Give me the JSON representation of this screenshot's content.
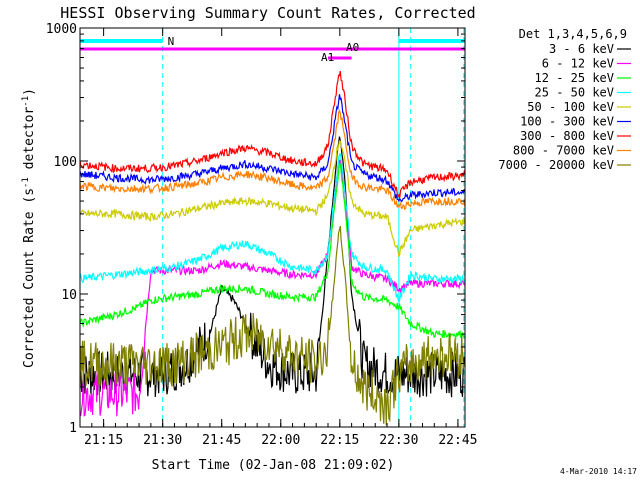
{
  "chart_data": {
    "type": "line",
    "title": "HESSI Observing Summary Count Rates, Corrected",
    "xlabel": "Start Time (02-Jan-08 21:09:02)",
    "ylabel_main": "Corrected Count Rate (s",
    "ylabel_sup1": "-1",
    "ylabel_mid": " detector",
    "ylabel_sup2": "-1",
    "ylabel_end": ")",
    "yscale": "log",
    "ylim": [
      1,
      1000
    ],
    "xlim_minutes": [
      21.15,
      22.78
    ],
    "x_ticks": [
      {
        "label": "21:15",
        "value": 21.25
      },
      {
        "label": "21:30",
        "value": 21.5
      },
      {
        "label": "21:45",
        "value": 21.75
      },
      {
        "label": "22:00",
        "value": 22.0
      },
      {
        "label": "22:15",
        "value": 22.25
      },
      {
        "label": "22:30",
        "value": 22.5
      },
      {
        "label": "22:45",
        "value": 22.75
      }
    ],
    "y_ticks": [
      {
        "label": "1",
        "value": 1
      },
      {
        "label": "10",
        "value": 10
      },
      {
        "label": "100",
        "value": 100
      },
      {
        "label": "1000",
        "value": 1000
      }
    ],
    "legend_title": "Det 1,3,4,5,6,9",
    "legend_placement": "right",
    "series": [
      {
        "name": "3 - 6 keV",
        "color": "#000000",
        "x": [
          21.15,
          21.3,
          21.5,
          21.6,
          21.7,
          21.75,
          21.8,
          21.85,
          21.9,
          21.95,
          22.05,
          22.15,
          22.2,
          22.23,
          22.25,
          22.27,
          22.3,
          22.35,
          22.45,
          22.55,
          22.65,
          22.78
        ],
        "y": [
          2.5,
          2.5,
          2.5,
          3,
          5,
          11,
          9,
          6,
          4,
          3,
          2.5,
          2.5,
          20,
          80,
          160,
          80,
          10,
          3,
          2.5,
          2.5,
          2.5,
          2.5
        ]
      },
      {
        "name": "6 - 12 keV",
        "color": "#ff00ff",
        "x": [
          21.15,
          21.3,
          21.4,
          21.45,
          21.55,
          21.65,
          21.75,
          21.85,
          21.95,
          22.05,
          22.15,
          22.2,
          22.23,
          22.25,
          22.27,
          22.3,
          22.35,
          22.45,
          22.5,
          22.55,
          22.65,
          22.78
        ],
        "y": [
          1.8,
          1.8,
          1.8,
          15,
          15,
          15,
          17,
          16,
          15,
          14,
          14,
          20,
          60,
          110,
          60,
          16,
          14,
          13,
          11,
          12,
          12,
          12
        ]
      },
      {
        "name": "12 - 25 keV",
        "color": "#00ff00",
        "x": [
          21.15,
          21.3,
          21.4,
          21.45,
          21.55,
          21.65,
          21.75,
          21.85,
          21.95,
          22.05,
          22.15,
          22.2,
          22.23,
          22.25,
          22.27,
          22.3,
          22.35,
          22.45,
          22.5,
          22.55,
          22.65,
          22.78
        ],
        "y": [
          6,
          7,
          8,
          9,
          9.5,
          10,
          11,
          11,
          10,
          9.5,
          9.5,
          15,
          50,
          100,
          50,
          12,
          9.5,
          9,
          8,
          6,
          5,
          5
        ]
      },
      {
        "name": "25 - 50 keV",
        "color": "#00ffff",
        "x": [
          21.15,
          21.3,
          21.45,
          21.55,
          21.65,
          21.75,
          21.85,
          21.95,
          22.05,
          22.15,
          22.2,
          22.23,
          22.25,
          22.27,
          22.3,
          22.35,
          22.45,
          22.5,
          22.55,
          22.65,
          22.78
        ],
        "y": [
          13,
          14,
          15,
          16,
          18,
          22,
          24,
          20,
          16,
          15,
          20,
          60,
          120,
          60,
          20,
          16,
          15,
          9,
          14,
          13,
          13
        ]
      },
      {
        "name": "50 - 100 keV",
        "color": "#cccc00",
        "x": [
          21.15,
          21.3,
          21.45,
          21.55,
          21.65,
          21.75,
          21.85,
          21.95,
          22.05,
          22.15,
          22.2,
          22.23,
          22.25,
          22.27,
          22.3,
          22.35,
          22.45,
          22.5,
          22.55,
          22.65,
          22.78
        ],
        "y": [
          40,
          40,
          38,
          40,
          44,
          48,
          50,
          48,
          44,
          42,
          55,
          100,
          150,
          100,
          50,
          40,
          38,
          20,
          30,
          33,
          35
        ]
      },
      {
        "name": "100 - 300 keV",
        "color": "#0000ff",
        "x": [
          21.15,
          21.3,
          21.45,
          21.55,
          21.65,
          21.75,
          21.85,
          21.95,
          22.05,
          22.15,
          22.2,
          22.23,
          22.25,
          22.27,
          22.3,
          22.35,
          22.45,
          22.5,
          22.55,
          22.65,
          22.78
        ],
        "y": [
          80,
          75,
          72,
          75,
          80,
          88,
          95,
          88,
          80,
          75,
          95,
          200,
          320,
          200,
          95,
          80,
          72,
          50,
          55,
          58,
          58
        ]
      },
      {
        "name": "300 - 800 keV",
        "color": "#ff0000",
        "x": [
          21.15,
          21.3,
          21.45,
          21.55,
          21.65,
          21.75,
          21.85,
          21.95,
          22.05,
          22.15,
          22.2,
          22.23,
          22.25,
          22.27,
          22.3,
          22.35,
          22.45,
          22.5,
          22.55,
          22.65,
          22.78
        ],
        "y": [
          95,
          88,
          88,
          92,
          100,
          115,
          125,
          115,
          100,
          95,
          130,
          300,
          480,
          300,
          130,
          95,
          85,
          55,
          70,
          75,
          78
        ]
      },
      {
        "name": "800 - 7000 keV",
        "color": "#ff8000",
        "x": [
          21.15,
          21.3,
          21.45,
          21.55,
          21.65,
          21.75,
          21.85,
          21.95,
          22.05,
          22.15,
          22.2,
          22.23,
          22.25,
          22.27,
          22.3,
          22.35,
          22.45,
          22.5,
          22.55,
          22.65,
          22.78
        ],
        "y": [
          65,
          62,
          62,
          64,
          68,
          75,
          80,
          74,
          66,
          62,
          75,
          150,
          250,
          150,
          75,
          64,
          60,
          45,
          48,
          50,
          50
        ]
      },
      {
        "name": "7000 - 20000 keV",
        "color": "#808000",
        "x": [
          21.15,
          21.3,
          21.45,
          21.55,
          21.65,
          21.75,
          21.85,
          21.95,
          22.05,
          22.15,
          22.2,
          22.23,
          22.25,
          22.27,
          22.3,
          22.35,
          22.45,
          22.5,
          22.55,
          22.65,
          22.78
        ],
        "y": [
          3,
          3,
          3,
          3,
          3.5,
          4,
          5,
          4.5,
          3.5,
          3,
          4,
          15,
          33,
          15,
          3,
          2,
          1.5,
          2.5,
          3,
          3.5,
          3.5
        ]
      }
    ],
    "annotations": {
      "night": {
        "label": "N",
        "color": "#00ffff",
        "segments": [
          [
            21.15,
            21.5
          ],
          [
            22.5,
            22.78
          ]
        ]
      },
      "attenuator": {
        "label": "A0",
        "color": "#ff00ff",
        "segments": [
          [
            21.15,
            22.78
          ]
        ]
      },
      "a1": {
        "label": "A1",
        "color": "#ff00ff",
        "segments": [
          [
            22.2,
            22.3
          ]
        ]
      },
      "vlines": [
        {
          "x": 21.5,
          "color": "#00ffff",
          "style": "dashed"
        },
        {
          "x": 22.5,
          "color": "#00ffff",
          "style": "solid"
        },
        {
          "x": 22.55,
          "color": "#00ffff",
          "style": "dashed"
        },
        {
          "x": 22.775,
          "color": "#00ffff",
          "style": "dashed"
        }
      ]
    }
  },
  "footer": {
    "timestamp": "4-Mar-2010 14:17"
  }
}
